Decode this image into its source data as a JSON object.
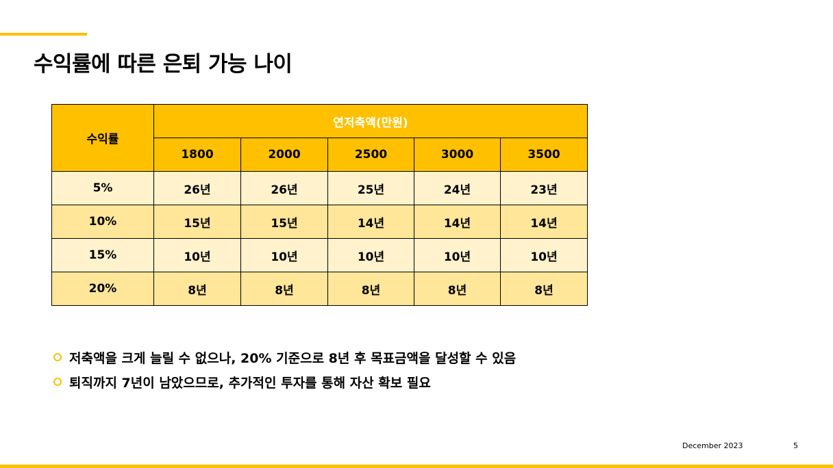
{
  "slide": {
    "title": "수익률에 따른 은퇴 가능 나이",
    "footer_date": "December 2023",
    "page_number": "5"
  },
  "table": {
    "row_header": "수익률",
    "group_header": "연저축액(만원)",
    "columns": [
      "1800",
      "2000",
      "2500",
      "3000",
      "3500"
    ],
    "rows": [
      {
        "rate": "5%",
        "values": [
          "26년",
          "26년",
          "25년",
          "24년",
          "23년"
        ]
      },
      {
        "rate": "10%",
        "values": [
          "15년",
          "15년",
          "14년",
          "14년",
          "14년"
        ]
      },
      {
        "rate": "15%",
        "values": [
          "10년",
          "10년",
          "10년",
          "10년",
          "10년"
        ]
      },
      {
        "rate": "20%",
        "values": [
          "8년",
          "8년",
          "8년",
          "8년",
          "8년"
        ]
      }
    ]
  },
  "bullets": [
    "저축액을 크게 늘릴 수 없으나, 20% 기준으로 8년 후 목표금액을 달성할 수 있음",
    "퇴직까지 7년이 남았으므로, 추가적인 투자를 통해 자산 확보 필요"
  ],
  "colors": {
    "accent": "#FFC000",
    "row_light": "#FFF2CC",
    "row_dark": "#FFE699"
  }
}
